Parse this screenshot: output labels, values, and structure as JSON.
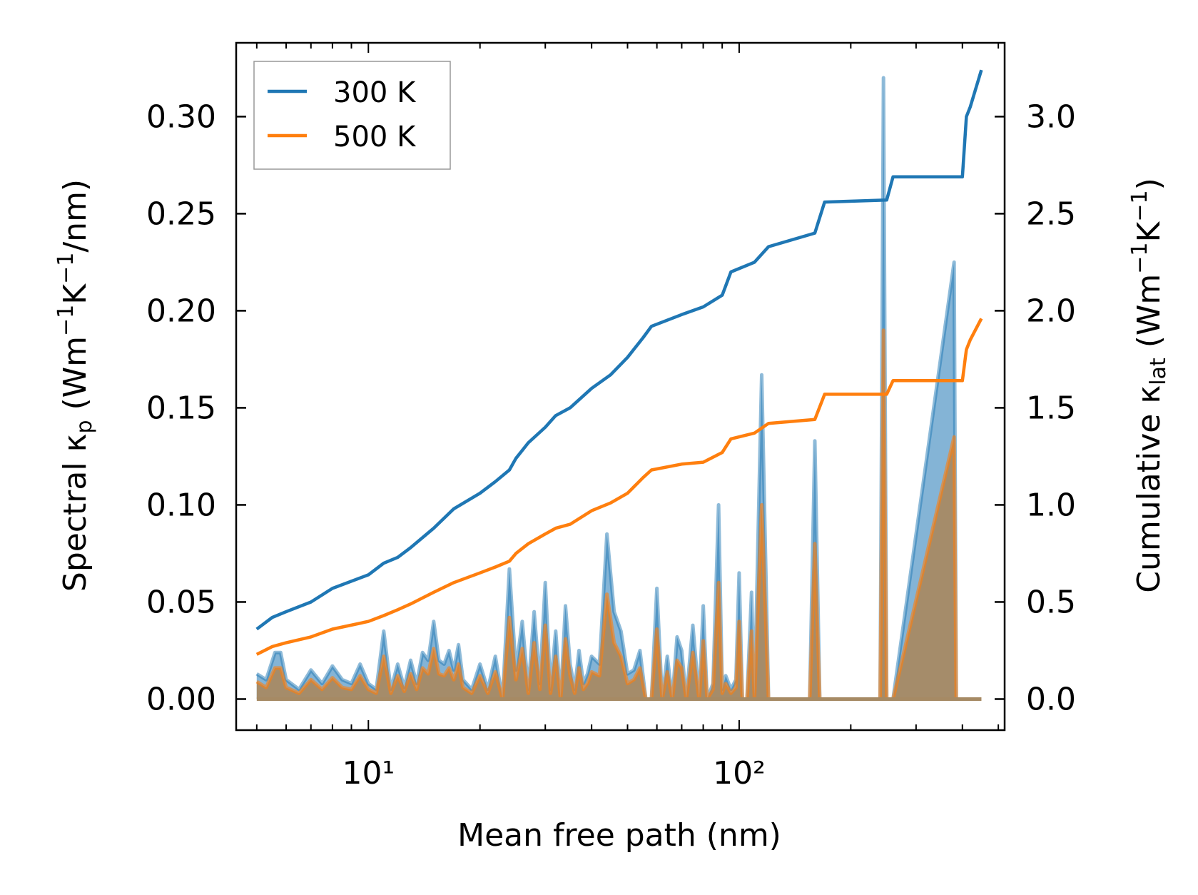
{
  "chart_data": {
    "type": "line",
    "xlabel": "Mean free path (nm)",
    "ylabel_left": "Spectral κₚ (Wm⁻¹K⁻¹/nm)",
    "ylabel_right": "Cumulative κ_lat (Wm⁻¹K⁻¹)",
    "xscale": "log",
    "xlim": [
      4.4,
      520
    ],
    "ylim_left": [
      -0.016,
      0.338
    ],
    "ylim_right": [
      -0.16,
      3.38
    ],
    "x_tick_labels": [
      "10¹",
      "10²"
    ],
    "y_left_ticks": [
      "0.00",
      "0.05",
      "0.10",
      "0.15",
      "0.20",
      "0.25",
      "0.30"
    ],
    "y_right_ticks": [
      "0.0",
      "0.5",
      "1.0",
      "1.5",
      "2.0",
      "2.5",
      "3.0"
    ],
    "legend": {
      "position": "upper-left",
      "entries": [
        "300 K",
        "500 K"
      ]
    },
    "colors": {
      "300K": "#1f77b4",
      "500K": "#ff7f0e",
      "spectral_fill": "#a68a64"
    },
    "series": [
      {
        "name": "300 K",
        "role": "cumulative (right axis)",
        "x": [
          5,
          5.5,
          6,
          7,
          8,
          10,
          11,
          12,
          13,
          15,
          17,
          20,
          22,
          24,
          25,
          27,
          30,
          32,
          35,
          40,
          45,
          50,
          55,
          58,
          70,
          80,
          90,
          95,
          110,
          120,
          160,
          170,
          250,
          260,
          400,
          410,
          420,
          450
        ],
        "values": [
          0.36,
          0.42,
          0.45,
          0.5,
          0.57,
          0.64,
          0.7,
          0.73,
          0.78,
          0.88,
          0.98,
          1.06,
          1.12,
          1.18,
          1.24,
          1.32,
          1.4,
          1.46,
          1.5,
          1.6,
          1.67,
          1.76,
          1.86,
          1.92,
          1.98,
          2.02,
          2.08,
          2.2,
          2.25,
          2.33,
          2.4,
          2.56,
          2.57,
          2.69,
          2.69,
          3.0,
          3.05,
          3.24
        ]
      },
      {
        "name": "500 K",
        "role": "cumulative (right axis)",
        "x": [
          5,
          5.5,
          6,
          7,
          8,
          10,
          11,
          12,
          13,
          15,
          17,
          20,
          22,
          24,
          25,
          27,
          30,
          32,
          35,
          40,
          45,
          50,
          55,
          58,
          70,
          80,
          90,
          95,
          110,
          120,
          160,
          170,
          250,
          260,
          400,
          410,
          420,
          450
        ],
        "values": [
          0.23,
          0.27,
          0.29,
          0.32,
          0.36,
          0.4,
          0.43,
          0.46,
          0.49,
          0.55,
          0.6,
          0.65,
          0.68,
          0.71,
          0.75,
          0.8,
          0.85,
          0.88,
          0.9,
          0.97,
          1.01,
          1.06,
          1.14,
          1.18,
          1.21,
          1.22,
          1.27,
          1.34,
          1.37,
          1.42,
          1.44,
          1.57,
          1.57,
          1.64,
          1.64,
          1.8,
          1.85,
          1.96
        ]
      },
      {
        "name": "300 K spectral",
        "role": "spectral (left axis, filled)",
        "x": [
          5.0,
          5.3,
          5.6,
          5.8,
          6.0,
          6.5,
          7.0,
          7.5,
          8.0,
          8.5,
          9.0,
          9.5,
          10.0,
          10.5,
          11.0,
          11.5,
          12.0,
          12.5,
          13.0,
          13.5,
          14.0,
          14.5,
          15.0,
          15.5,
          16.0,
          16.5,
          17.0,
          17.5,
          18.0,
          19.0,
          20.0,
          21.0,
          22.0,
          23.0,
          24.0,
          25.0,
          26.0,
          27.0,
          28.0,
          29.0,
          30.0,
          31.0,
          32.0,
          33.0,
          34.0,
          35.0,
          36.0,
          37.0,
          38.0,
          39.0,
          40.0,
          42.0,
          44.0,
          46.0,
          48.0,
          50.0,
          52.0,
          54.0,
          56.0,
          58.0,
          60.0,
          62.0,
          64.0,
          66.0,
          68.0,
          70.0,
          72.0,
          75.0,
          78.0,
          80.0,
          82.0,
          85.0,
          88.0,
          90.0,
          92.0,
          95.0,
          98.0,
          100.0,
          102.0,
          105.0,
          108.0,
          110.0,
          115.0,
          120.0,
          125.0,
          130.0,
          135.0,
          140.0,
          150.0,
          155.0,
          160.0,
          165.0,
          170.0,
          175.0,
          180.0,
          240.0,
          245.0,
          250.0,
          255.0,
          260.0,
          380.0,
          385.0,
          390.0,
          400.0,
          410.0,
          415.0,
          420.0,
          425.0,
          430.0,
          440.0,
          450.0
        ],
        "values": [
          0.013,
          0.01,
          0.024,
          0.024,
          0.01,
          0.005,
          0.015,
          0.008,
          0.017,
          0.01,
          0.008,
          0.018,
          0.008,
          0.005,
          0.035,
          0.005,
          0.018,
          0.006,
          0.02,
          0.008,
          0.024,
          0.02,
          0.04,
          0.02,
          0.018,
          0.025,
          0.015,
          0.028,
          0.01,
          0.005,
          0.018,
          0.005,
          0.022,
          0.0,
          0.067,
          0.015,
          0.04,
          0.005,
          0.045,
          0.008,
          0.06,
          0.005,
          0.035,
          0.0,
          0.048,
          0.018,
          0.005,
          0.025,
          0.008,
          0.013,
          0.022,
          0.018,
          0.085,
          0.045,
          0.035,
          0.013,
          0.015,
          0.025,
          0.0,
          0.0,
          0.057,
          0.0,
          0.022,
          0.0,
          0.032,
          0.025,
          0.0,
          0.038,
          0.0,
          0.048,
          0.0,
          0.008,
          0.1,
          0.005,
          0.012,
          0.005,
          0.01,
          0.065,
          0.0,
          0.0,
          0.055,
          0.0,
          0.167,
          0.0,
          0.0,
          0.0,
          0.0,
          0.0,
          0.0,
          0.0,
          0.133,
          0.0,
          0.0,
          0.0,
          0.0,
          0.0,
          0.32,
          0.0,
          0.0,
          0.0,
          0.225,
          0.0,
          0.0,
          0.0,
          0.0,
          0.0,
          0.0,
          0.0,
          0.0,
          0.0,
          0.0
        ]
      },
      {
        "name": "500 K spectral",
        "role": "spectral (left axis, filled)",
        "x": [
          5.0,
          5.3,
          5.6,
          5.8,
          6.0,
          6.5,
          7.0,
          7.5,
          8.0,
          8.5,
          9.0,
          9.5,
          10.0,
          10.5,
          11.0,
          11.5,
          12.0,
          12.5,
          13.0,
          13.5,
          14.0,
          14.5,
          15.0,
          15.5,
          16.0,
          16.5,
          17.0,
          17.5,
          18.0,
          19.0,
          20.0,
          21.0,
          22.0,
          23.0,
          24.0,
          25.0,
          26.0,
          27.0,
          28.0,
          29.0,
          30.0,
          31.0,
          32.0,
          33.0,
          34.0,
          35.0,
          36.0,
          37.0,
          38.0,
          39.0,
          40.0,
          42.0,
          44.0,
          46.0,
          48.0,
          50.0,
          52.0,
          54.0,
          56.0,
          58.0,
          60.0,
          62.0,
          64.0,
          66.0,
          68.0,
          70.0,
          72.0,
          75.0,
          78.0,
          80.0,
          82.0,
          85.0,
          88.0,
          90.0,
          92.0,
          95.0,
          98.0,
          100.0,
          102.0,
          105.0,
          108.0,
          110.0,
          115.0,
          120.0,
          125.0,
          130.0,
          135.0,
          140.0,
          150.0,
          155.0,
          160.0,
          165.0,
          170.0,
          175.0,
          180.0,
          240.0,
          245.0,
          250.0,
          255.0,
          260.0,
          380.0,
          385.0,
          390.0,
          400.0,
          410.0,
          415.0,
          420.0,
          425.0,
          430.0,
          440.0,
          450.0
        ],
        "values": [
          0.009,
          0.006,
          0.016,
          0.016,
          0.006,
          0.003,
          0.01,
          0.005,
          0.011,
          0.006,
          0.005,
          0.012,
          0.005,
          0.003,
          0.022,
          0.003,
          0.012,
          0.004,
          0.013,
          0.005,
          0.016,
          0.013,
          0.026,
          0.013,
          0.012,
          0.016,
          0.01,
          0.018,
          0.006,
          0.003,
          0.012,
          0.003,
          0.014,
          0.0,
          0.042,
          0.01,
          0.026,
          0.003,
          0.029,
          0.005,
          0.038,
          0.003,
          0.022,
          0.0,
          0.031,
          0.012,
          0.003,
          0.016,
          0.005,
          0.008,
          0.014,
          0.012,
          0.054,
          0.029,
          0.022,
          0.008,
          0.01,
          0.016,
          0.0,
          0.0,
          0.036,
          0.0,
          0.014,
          0.0,
          0.02,
          0.016,
          0.0,
          0.024,
          0.0,
          0.03,
          0.0,
          0.005,
          0.06,
          0.003,
          0.008,
          0.003,
          0.006,
          0.04,
          0.0,
          0.0,
          0.035,
          0.0,
          0.1,
          0.0,
          0.0,
          0.0,
          0.0,
          0.0,
          0.0,
          0.0,
          0.08,
          0.0,
          0.0,
          0.0,
          0.0,
          0.0,
          0.19,
          0.0,
          0.0,
          0.0,
          0.135,
          0.0,
          0.0,
          0.0,
          0.0,
          0.0,
          0.0,
          0.0,
          0.0,
          0.0,
          0.0
        ]
      }
    ]
  }
}
